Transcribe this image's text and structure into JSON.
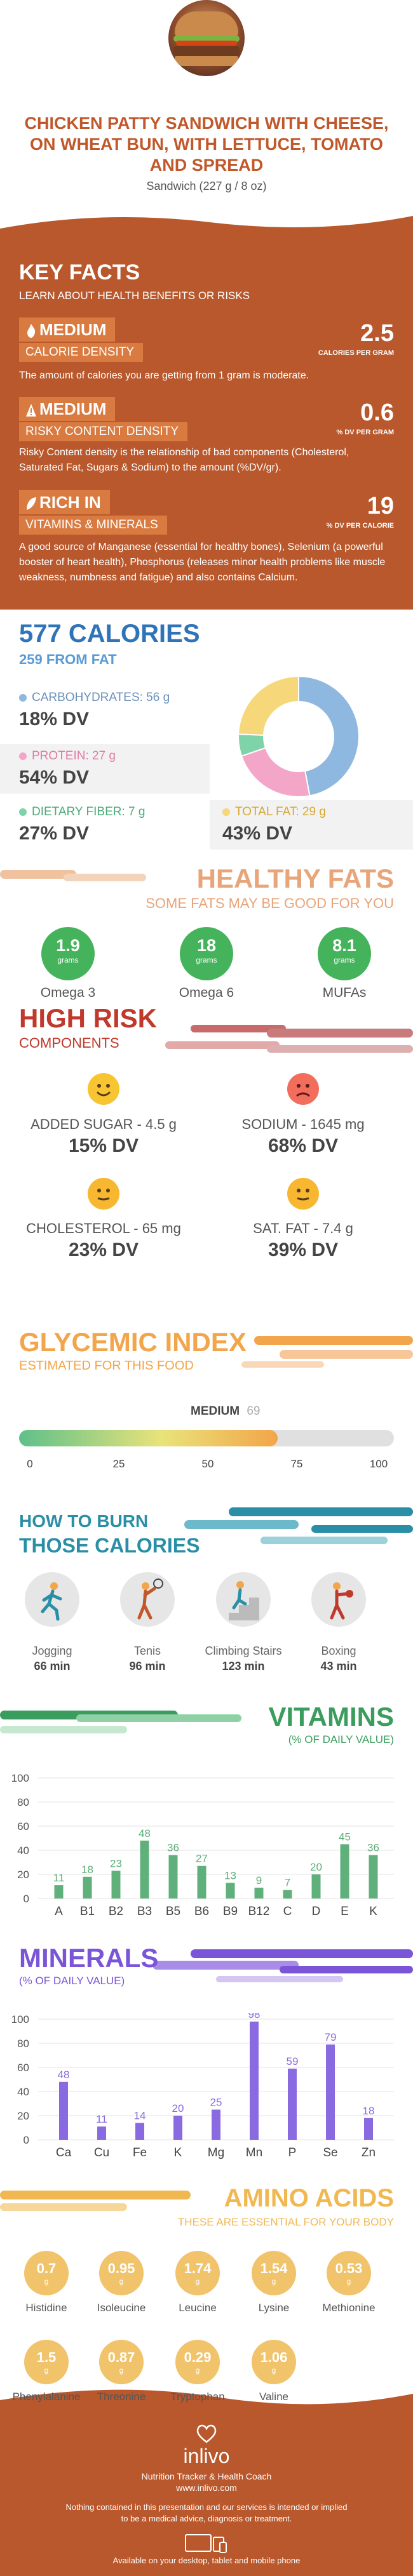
{
  "hero": {
    "title": "CHICKEN PATTY SANDWICH WITH CHEESE, ON WHEAT BUN, WITH LETTUCE, TOMATO AND SPREAD",
    "serving": "Sandwich (227 g / 8 oz)"
  },
  "key_facts": {
    "title": "KEY FACTS",
    "subtitle": "LEARN ABOUT HEALTH BENEFITS OR RISKS",
    "calorie_density": {
      "level": "MEDIUM",
      "label": "CALORIE DENSITY",
      "value": "2.5",
      "unit": "CALORIES PER GRAM",
      "desc": "The amount of calories you are getting from 1 gram is moderate."
    },
    "risky_content": {
      "level": "MEDIUM",
      "label": "RISKY CONTENT DENSITY",
      "value": "0.6",
      "unit": "% DV PER GRAM",
      "desc": "Risky Content density is the relationship of bad components (Cholesterol, Saturated Fat, Sugars & Sodium) to the amount (%DV/gr)."
    },
    "rich_in": {
      "level": "RICH IN",
      "label": "VITAMINS & MINERALS",
      "value": "19",
      "unit": "% DV PER CALORIE",
      "desc": "A good source of Manganese (essential for healthy bones), Selenium (a powerful booster of heart health), Phosphorus (releases minor health problems like muscle weakness, numbness and fatigue) and also contains Calcium."
    }
  },
  "calories": {
    "title": "577 CALORIES",
    "subtitle": "259 FROM FAT",
    "carbs": {
      "label": "CARBOHYDRATES: 56 g",
      "dv": "18% DV",
      "color": "#8fb8e0"
    },
    "protein": {
      "label": "PROTEIN: 27 g",
      "dv": "54% DV",
      "color": "#f4a6c8"
    },
    "fiber": {
      "label": "DIETARY FIBER: 7 g",
      "dv": "27% DV",
      "color": "#7ed3a8"
    },
    "fat": {
      "label": "TOTAL FAT: 29 g",
      "dv": "43% DV",
      "color": "#f6d77a"
    }
  },
  "healthy_fats": {
    "title": "HEALTHY FATS",
    "subtitle": "SOME FATS MAY BE GOOD FOR YOU",
    "items": [
      {
        "value": "1.9",
        "unit": "grams",
        "label": "Omega 3"
      },
      {
        "value": "18",
        "unit": "grams",
        "label": "Omega 6"
      },
      {
        "value": "8.1",
        "unit": "grams",
        "label": "MUFAs"
      }
    ]
  },
  "high_risk": {
    "title": "HIGH RISK",
    "subtitle": "COMPONENTS",
    "items": [
      {
        "label": "ADDED SUGAR - 4.5 g",
        "dv": "15% DV",
        "face": "happy"
      },
      {
        "label": "SODIUM - 1645 mg",
        "dv": "68% DV",
        "face": "sad"
      },
      {
        "label": "CHOLESTEROL - 65 mg",
        "dv": "23% DV",
        "face": "neutral"
      },
      {
        "label": "SAT. FAT - 7.4 g",
        "dv": "39% DV",
        "face": "neutral"
      }
    ]
  },
  "glycemic": {
    "title": "GLYCEMIC INDEX",
    "subtitle": "ESTIMATED FOR THIS FOOD",
    "level": "MEDIUM",
    "value": "69",
    "value_num": 69,
    "ticks": [
      "0",
      "25",
      "50",
      "75",
      "100"
    ]
  },
  "burn": {
    "title1": "HOW TO BURN",
    "title2": "THOSE CALORIES",
    "items": [
      {
        "label": "Jogging",
        "time": "66 min",
        "icon": "jogging-icon"
      },
      {
        "label": "Tenis",
        "time": "96 min",
        "icon": "tennis-icon"
      },
      {
        "label": "Climbing Stairs",
        "time": "123 min",
        "icon": "stairs-icon"
      },
      {
        "label": "Boxing",
        "time": "43 min",
        "icon": "boxing-icon"
      }
    ]
  },
  "vitamins": {
    "title": "VITAMINS",
    "subtitle": "(% OF DAILY VALUE)"
  },
  "minerals": {
    "title": "MINERALS",
    "subtitle": "(% OF DAILY VALUE)"
  },
  "amino": {
    "title": "AMINO ACIDS",
    "subtitle": "THESE ARE ESSENTIAL FOR YOUR BODY",
    "items": [
      {
        "value": "0.7",
        "unit": "g",
        "label": "Histidine"
      },
      {
        "value": "0.95",
        "unit": "g",
        "label": "Isoleucine"
      },
      {
        "value": "1.74",
        "unit": "g",
        "label": "Leucine"
      },
      {
        "value": "1.54",
        "unit": "g",
        "label": "Lysine"
      },
      {
        "value": "0.53",
        "unit": "g",
        "label": "Methionine"
      },
      {
        "value": "1.5",
        "unit": "g",
        "label": "Phenylalanine"
      },
      {
        "value": "0.87",
        "unit": "g",
        "label": "Threonine"
      },
      {
        "value": "0.29",
        "unit": "g",
        "label": "Tryptophan"
      },
      {
        "value": "1.06",
        "unit": "g",
        "label": "Valine"
      }
    ]
  },
  "footer": {
    "logo": "inlivo",
    "tagline": "Nutrition Tracker & Health Coach",
    "url": "www.inlivo.com",
    "disclaimer": "Nothing contained in this presentation and our services is intended or implied to be a medical advice, diagnosis or treatment.",
    "available": "Available on your desktop, tablet and mobile phone"
  },
  "chart_data": [
    {
      "type": "pie",
      "categories": [
        "Carbohydrates",
        "Protein",
        "Dietary Fiber",
        "Total Fat"
      ],
      "values": [
        56,
        27,
        7,
        29
      ]
    },
    {
      "type": "bar",
      "categories": [
        "A",
        "B1",
        "B2",
        "B3",
        "B5",
        "B6",
        "B9",
        "B12",
        "C",
        "D",
        "E",
        "K"
      ],
      "values": [
        11,
        18,
        23,
        48,
        36,
        27,
        13,
        9,
        7,
        20,
        45,
        36
      ],
      "ylim": [
        0,
        100
      ],
      "yticks": [
        "0",
        "20",
        "40",
        "60",
        "80",
        "100"
      ],
      "color": "#5fb07a"
    },
    {
      "type": "bar",
      "categories": [
        "Ca",
        "Cu",
        "Fe",
        "K",
        "Mg",
        "Mn",
        "P",
        "Se",
        "Zn"
      ],
      "values": [
        48,
        11,
        14,
        20,
        25,
        98,
        59,
        79,
        18
      ],
      "ylim": [
        0,
        100
      ],
      "yticks": [
        "0",
        "20",
        "40",
        "60",
        "80",
        "100"
      ],
      "color": "#8a6ae0"
    }
  ]
}
